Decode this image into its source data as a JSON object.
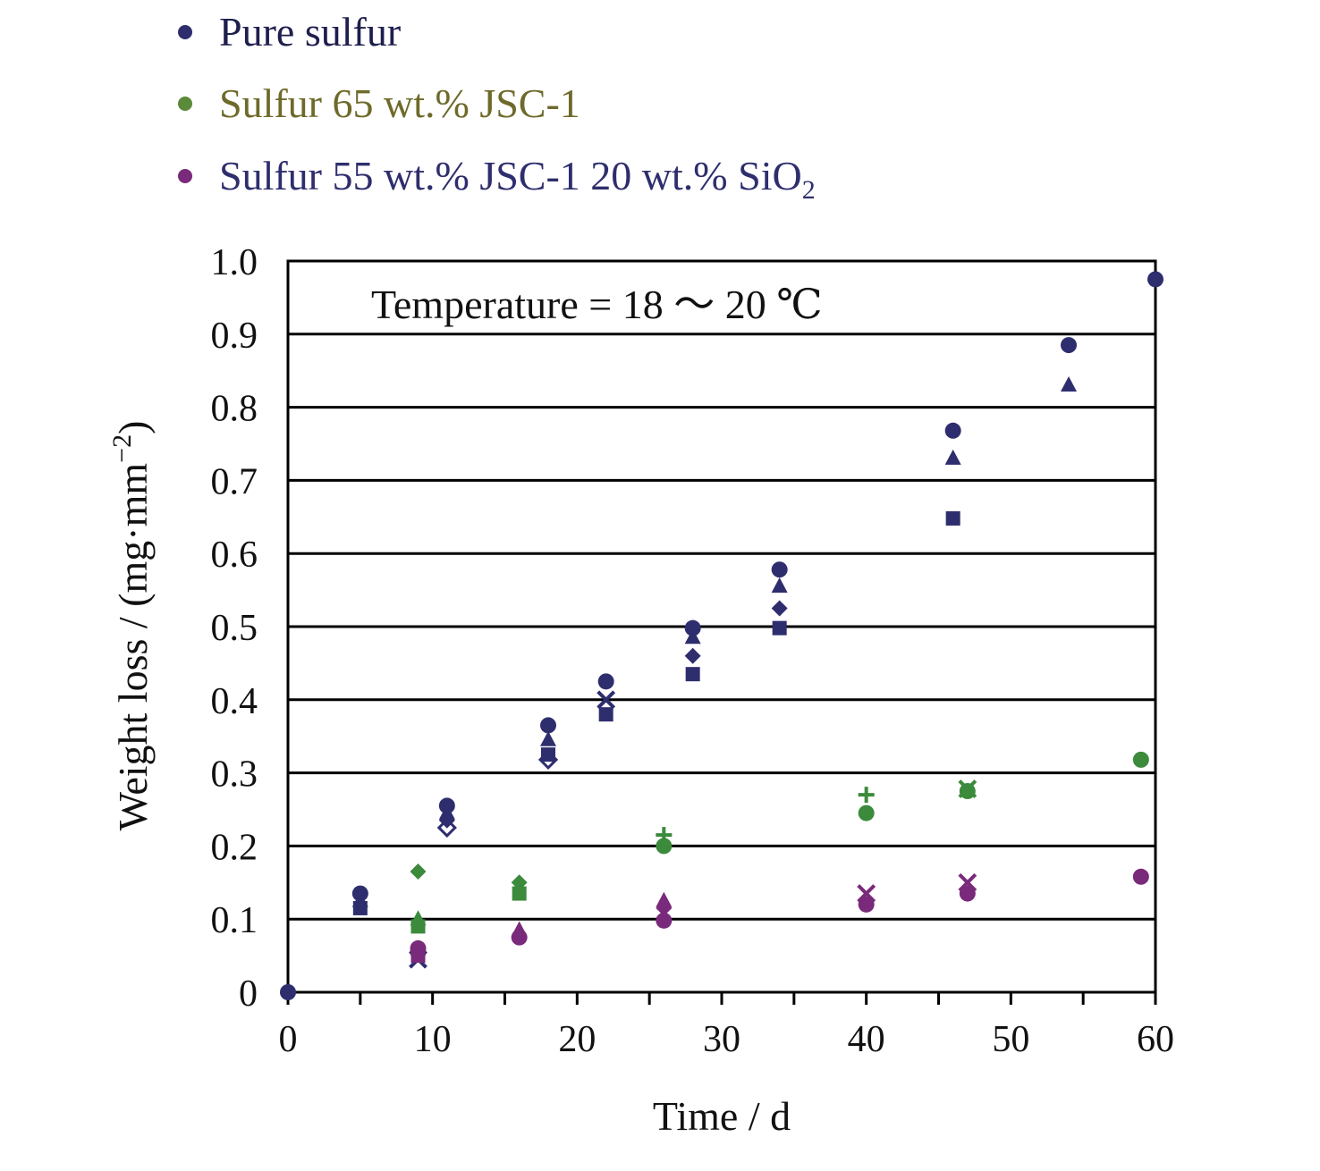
{
  "chart_data": {
    "type": "scatter",
    "title": "",
    "annotation": "Temperature = 18 ～ 20 ℃",
    "xlabel": "Time / d",
    "ylabel": {
      "text": "Weight loss / (mg·mm",
      "sup": "−2",
      "close": ")"
    },
    "xlim": [
      0,
      60
    ],
    "ylim": [
      0,
      1.0
    ],
    "xticks": [
      0,
      10,
      20,
      30,
      40,
      50,
      60
    ],
    "xtick_labels": [
      "0",
      "10",
      "20",
      "30",
      "40",
      "50",
      "60"
    ],
    "yticks": [
      0,
      0.1,
      0.2,
      0.3,
      0.4,
      0.5,
      0.6,
      0.7,
      0.8,
      0.9,
      1.0
    ],
    "ytick_labels": [
      "0",
      "0.1",
      "0.2",
      "0.3",
      "0.4",
      "0.5",
      "0.6",
      "0.7",
      "0.8",
      "0.9",
      "1.0"
    ],
    "grid": "horizontal",
    "legend_position": "top-left, above plot",
    "series": [
      {
        "name": "Pure sulfur",
        "color": "#2e2e6e",
        "points": [
          [
            0,
            0.0,
            "circle"
          ],
          [
            5,
            0.135,
            "circle"
          ],
          [
            5,
            0.125,
            "triangle"
          ],
          [
            5,
            0.115,
            "square"
          ],
          [
            9,
            0.055,
            "circle"
          ],
          [
            9,
            0.045,
            "cross"
          ],
          [
            11,
            0.255,
            "circle"
          ],
          [
            11,
            0.245,
            "triangle"
          ],
          [
            11,
            0.235,
            "diamond"
          ],
          [
            11,
            0.225,
            "diamond-open"
          ],
          [
            18,
            0.365,
            "circle"
          ],
          [
            18,
            0.345,
            "triangle"
          ],
          [
            18,
            0.325,
            "square"
          ],
          [
            18,
            0.318,
            "diamond-open"
          ],
          [
            22,
            0.425,
            "circle"
          ],
          [
            22,
            0.4,
            "cross"
          ],
          [
            22,
            0.38,
            "square"
          ],
          [
            28,
            0.498,
            "circle"
          ],
          [
            28,
            0.485,
            "triangle"
          ],
          [
            28,
            0.46,
            "diamond"
          ],
          [
            28,
            0.435,
            "square"
          ],
          [
            34,
            0.578,
            "circle"
          ],
          [
            34,
            0.555,
            "triangle"
          ],
          [
            34,
            0.525,
            "diamond"
          ],
          [
            34,
            0.498,
            "square"
          ],
          [
            46,
            0.768,
            "circle"
          ],
          [
            46,
            0.73,
            "triangle"
          ],
          [
            46,
            0.648,
            "square"
          ],
          [
            54,
            0.885,
            "circle"
          ],
          [
            54,
            0.83,
            "triangle"
          ],
          [
            60,
            0.975,
            "circle"
          ]
        ]
      },
      {
        "name": "Sulfur 65 wt.% JSC-1",
        "color": "#3c8a3c",
        "points": [
          [
            9,
            0.165,
            "diamond"
          ],
          [
            9,
            0.1,
            "triangle"
          ],
          [
            9,
            0.09,
            "square"
          ],
          [
            16,
            0.15,
            "diamond"
          ],
          [
            16,
            0.135,
            "square"
          ],
          [
            26,
            0.215,
            "plus"
          ],
          [
            26,
            0.2,
            "circle"
          ],
          [
            40,
            0.27,
            "plus"
          ],
          [
            40,
            0.245,
            "circle"
          ],
          [
            47,
            0.278,
            "cross"
          ],
          [
            47,
            0.275,
            "circle"
          ],
          [
            59,
            0.318,
            "circle"
          ]
        ]
      },
      {
        "name": "Sulfur 55 wt.% JSC-1 20 wt.% SiO",
        "name_sub": "2",
        "color": "#7a2a7a",
        "points": [
          [
            9,
            0.06,
            "circle"
          ],
          [
            9,
            0.05,
            "square"
          ],
          [
            16,
            0.085,
            "triangle"
          ],
          [
            16,
            0.075,
            "circle"
          ],
          [
            26,
            0.125,
            "triangle"
          ],
          [
            26,
            0.115,
            "diamond"
          ],
          [
            26,
            0.098,
            "circle"
          ],
          [
            40,
            0.135,
            "cross"
          ],
          [
            40,
            0.12,
            "circle"
          ],
          [
            47,
            0.15,
            "cross"
          ],
          [
            47,
            0.135,
            "circle"
          ],
          [
            59,
            0.158,
            "circle"
          ]
        ]
      }
    ]
  }
}
